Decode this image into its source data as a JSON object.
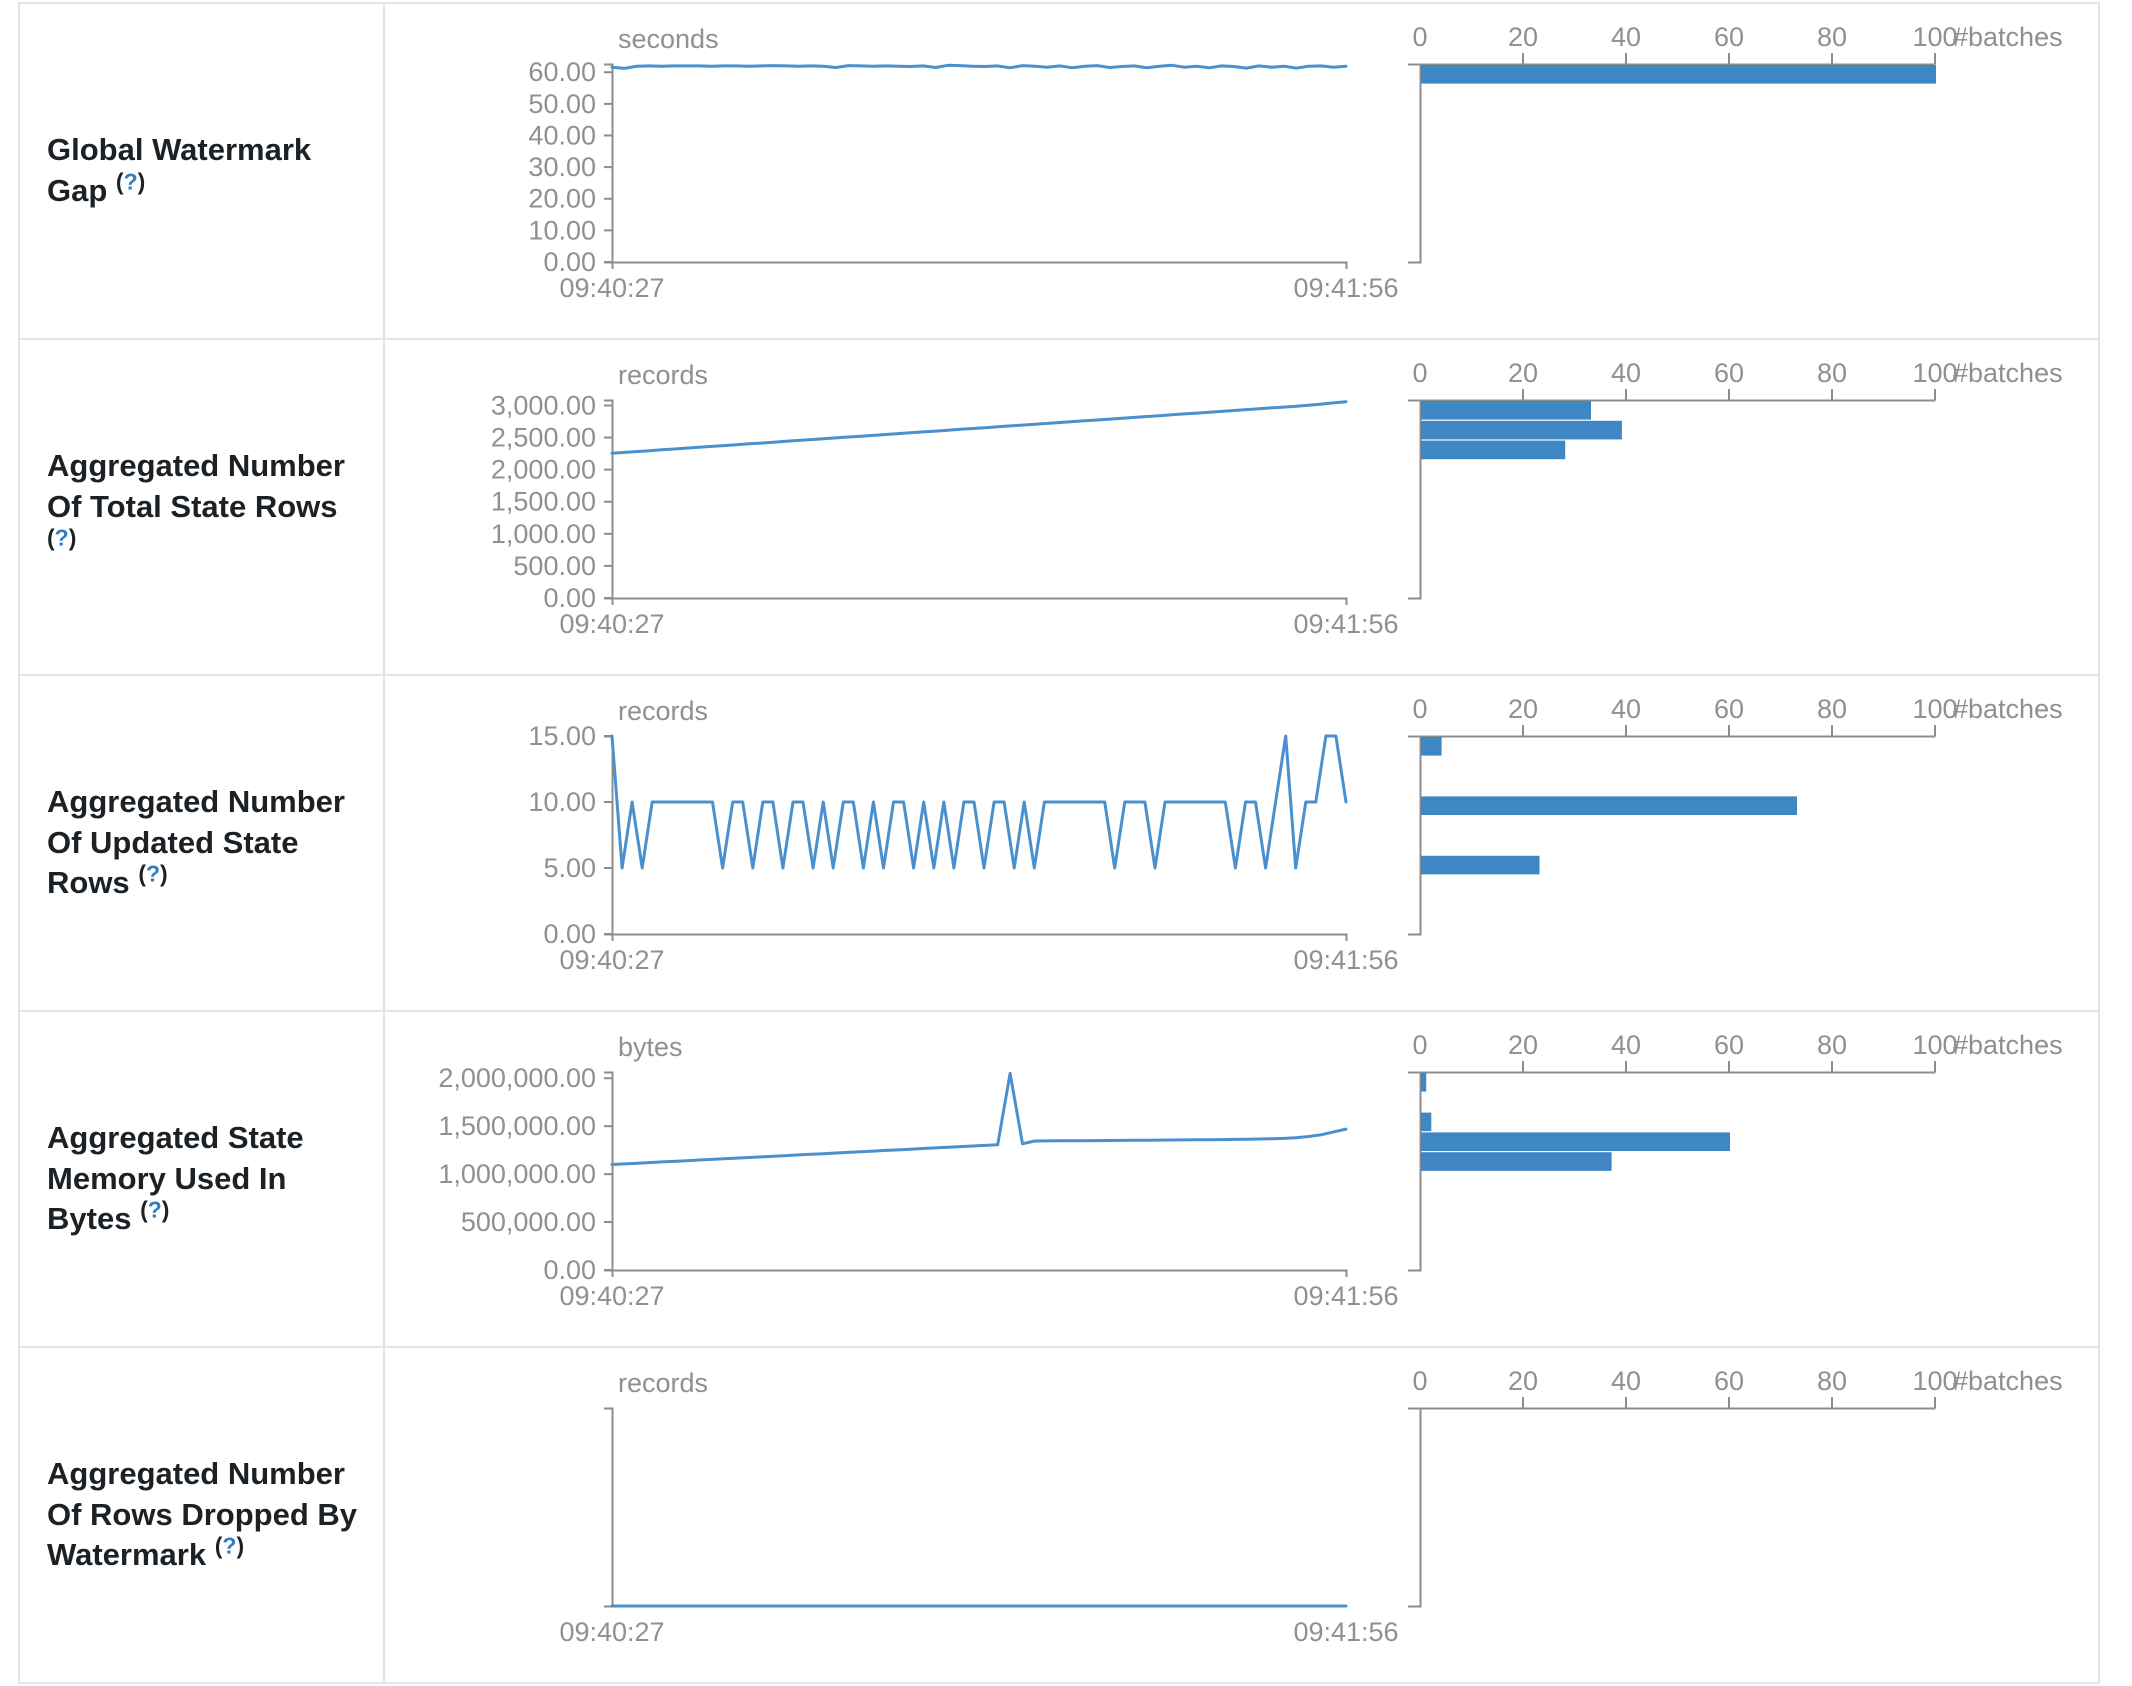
{
  "colors": {
    "line": "#4a90ce",
    "bar": "#3e86c4",
    "axis": "#8c8c8c",
    "axis_text": "#909090",
    "label_text": "#1c2126",
    "help_link": "#2e7ec2",
    "row_border": "#dfe6ee",
    "column_border": "#e3e3e3"
  },
  "rows": [
    {
      "label": "Global Watermark Gap",
      "help_open": "(",
      "help_q": "?",
      "help_close": ")",
      "line_chart": {
        "type": "line",
        "unit": "seconds",
        "x_start": "09:40:27",
        "x_end": "09:41:56",
        "y_max": 62.6,
        "y_ticks": [
          {
            "text": "60.00",
            "v": 60
          },
          {
            "text": "50.00",
            "v": 50
          },
          {
            "text": "40.00",
            "v": 40
          },
          {
            "text": "30.00",
            "v": 30
          },
          {
            "text": "20.00",
            "v": 20
          },
          {
            "text": "10.00",
            "v": 10
          },
          {
            "text": "0.00",
            "v": 0
          }
        ],
        "values": [
          61.6,
          61.2,
          61.9,
          62,
          61.9,
          62,
          62,
          62,
          61.9,
          62,
          62,
          61.9,
          62,
          62.1,
          62,
          61.9,
          62,
          61.9,
          61.5,
          62.1,
          62,
          61.9,
          62,
          61.9,
          61.8,
          62,
          61.5,
          62.2,
          62.1,
          61.9,
          61.8,
          62,
          61.4,
          62.1,
          61.9,
          61.6,
          62,
          61.4,
          61.9,
          62.1,
          61.5,
          61.8,
          62,
          61.4,
          61.9,
          62.2,
          61.6,
          61.9,
          61.4,
          62,
          61.8,
          61.3,
          62,
          61.6,
          61.9,
          61.3,
          61.9,
          62,
          61.6,
          61.9
        ]
      },
      "histogram": {
        "type": "bar",
        "x_label": "#batches",
        "x_max": 100,
        "x_ticks": [
          0,
          20,
          40,
          60,
          80,
          100
        ],
        "bars": [
          {
            "count": 100,
            "slot": 0
          }
        ]
      }
    },
    {
      "label": "Aggregated Number Of Total State Rows",
      "help_open": "(",
      "help_q": "?",
      "help_close": ")",
      "line_chart": {
        "type": "line",
        "unit": "records",
        "x_start": "09:40:27",
        "x_end": "09:41:56",
        "y_max": 3085,
        "y_ticks": [
          {
            "text": "3,000.00",
            "v": 3000
          },
          {
            "text": "2,500.00",
            "v": 2500
          },
          {
            "text": "2,000.00",
            "v": 2000
          },
          {
            "text": "1,500.00",
            "v": 1500
          },
          {
            "text": "1,000.00",
            "v": 1000
          },
          {
            "text": "500.00",
            "v": 500
          },
          {
            "text": "0.00",
            "v": 0
          }
        ],
        "values": [
          2255,
          2268,
          2281,
          2295,
          2309,
          2322,
          2335,
          2349,
          2362,
          2375,
          2389,
          2402,
          2414,
          2427,
          2441,
          2455,
          2468,
          2480,
          2494,
          2508,
          2521,
          2534,
          2547,
          2561,
          2574,
          2588,
          2601,
          2614,
          2628,
          2641,
          2654,
          2668,
          2681,
          2694,
          2707,
          2721,
          2734,
          2748,
          2761,
          2774,
          2788,
          2801,
          2814,
          2828,
          2841,
          2855,
          2868,
          2881,
          2895,
          2908,
          2921,
          2935,
          2948,
          2962,
          2975,
          2989,
          3002,
          3021,
          3040,
          3058
        ]
      },
      "histogram": {
        "type": "bar",
        "x_label": "#batches",
        "x_max": 100,
        "x_ticks": [
          0,
          20,
          40,
          60,
          80,
          100
        ],
        "bars": [
          {
            "count": 33,
            "slot": 0
          },
          {
            "count": 39,
            "slot": 1
          },
          {
            "count": 28,
            "slot": 2
          }
        ]
      }
    },
    {
      "label": "Aggregated Number Of Updated State Rows",
      "help_open": "(",
      "help_q": "?",
      "help_close": ")",
      "line_chart": {
        "type": "line",
        "unit": "records",
        "x_start": "09:40:27",
        "x_end": "09:41:56",
        "y_max": 15,
        "y_ticks": [
          {
            "text": "15.00",
            "v": 15
          },
          {
            "text": "10.00",
            "v": 10
          },
          {
            "text": "5.00",
            "v": 5
          },
          {
            "text": "0.00",
            "v": 0
          }
        ],
        "values": [
          15,
          5,
          10,
          5,
          10,
          10,
          10,
          10,
          10,
          10,
          10,
          5,
          10,
          10,
          5,
          10,
          10,
          5,
          10,
          10,
          5,
          10,
          5,
          10,
          10,
          5,
          10,
          5,
          10,
          10,
          5,
          10,
          5,
          10,
          5,
          10,
          10,
          5,
          10,
          10,
          5,
          10,
          5,
          10,
          10,
          10,
          10,
          10,
          10,
          10,
          5,
          10,
          10,
          10,
          5,
          10,
          10,
          10,
          10,
          10,
          10,
          10,
          5,
          10,
          10,
          5,
          10,
          15,
          5,
          10,
          10,
          15,
          15,
          10
        ]
      },
      "histogram": {
        "type": "bar",
        "x_label": "#batches",
        "x_max": 100,
        "x_ticks": [
          0,
          20,
          40,
          60,
          80,
          100
        ],
        "bars": [
          {
            "count": 4,
            "slot": 0
          },
          {
            "count": 73,
            "slot": 3
          },
          {
            "count": 23,
            "slot": 6
          }
        ]
      }
    },
    {
      "label": "Aggregated State Memory Used In Bytes",
      "help_open": "(",
      "help_q": "?",
      "help_close": ")",
      "line_chart": {
        "type": "line",
        "unit": "bytes",
        "x_start": "09:40:27",
        "x_end": "09:41:56",
        "y_max": 2065000,
        "y_ticks": [
          {
            "text": "2,000,000.00",
            "v": 2000000
          },
          {
            "text": "1,500,000.00",
            "v": 1500000
          },
          {
            "text": "1,000,000.00",
            "v": 1000000
          },
          {
            "text": "500,000.00",
            "v": 500000
          },
          {
            "text": "0.00",
            "v": 0
          }
        ],
        "values": [
          1100000,
          1107000,
          1113000,
          1120000,
          1127000,
          1133000,
          1140000,
          1147000,
          1153000,
          1160000,
          1167000,
          1173000,
          1180000,
          1187000,
          1193000,
          1200000,
          1207000,
          1213000,
          1220000,
          1227000,
          1233000,
          1240000,
          1247000,
          1253000,
          1260000,
          1267000,
          1273000,
          1280000,
          1287000,
          1293000,
          1300000,
          1307000,
          2050000,
          1316000,
          1345000,
          1346000,
          1347000,
          1348000,
          1349000,
          1350000,
          1351000,
          1352000,
          1353000,
          1354000,
          1355000,
          1356000,
          1357000,
          1358000,
          1359000,
          1360000,
          1362000,
          1364000,
          1366000,
          1368000,
          1372000,
          1380000,
          1392000,
          1410000,
          1440000,
          1470000
        ]
      },
      "histogram": {
        "type": "bar",
        "x_label": "#batches",
        "x_max": 100,
        "x_ticks": [
          0,
          20,
          40,
          60,
          80,
          100
        ],
        "bars": [
          {
            "count": 1,
            "slot": 0
          },
          {
            "count": 2,
            "slot": 2
          },
          {
            "count": 60,
            "slot": 3
          },
          {
            "count": 37,
            "slot": 4
          }
        ]
      }
    },
    {
      "label": "Aggregated Number Of Rows Dropped By Watermark",
      "help_open": "(",
      "help_q": "?",
      "help_close": ")",
      "line_chart": {
        "type": "line",
        "unit": "records",
        "x_start": "09:40:27",
        "x_end": "09:41:56",
        "y_max": 1,
        "y_ticks": [],
        "values": [
          0,
          0,
          0,
          0,
          0,
          0,
          0,
          0,
          0,
          0
        ]
      },
      "histogram": {
        "type": "bar",
        "x_label": "#batches",
        "x_max": 100,
        "x_ticks": [
          0,
          20,
          40,
          60,
          80,
          100
        ],
        "bars": []
      }
    }
  ]
}
